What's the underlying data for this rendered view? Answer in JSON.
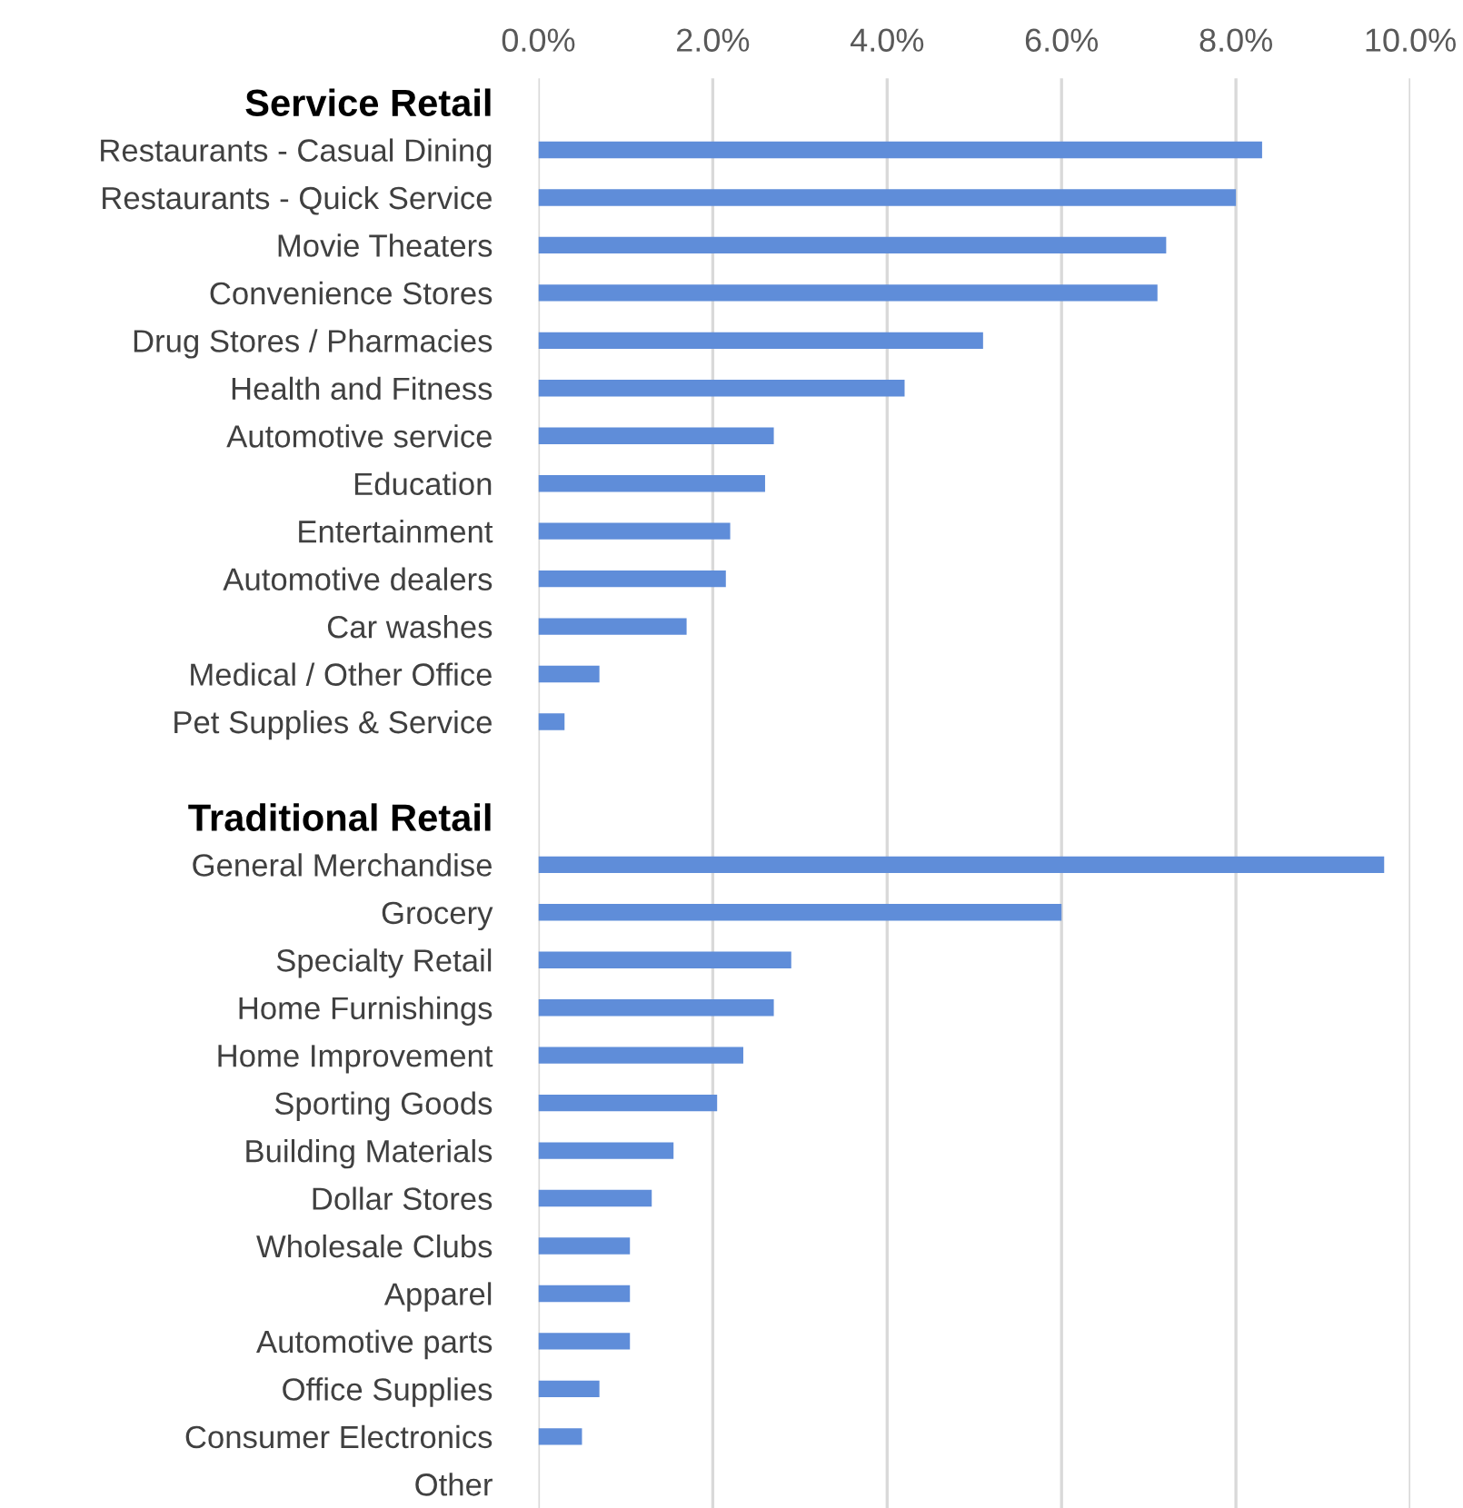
{
  "chart_data": {
    "type": "bar",
    "orientation": "horizontal",
    "categories": [
      "Service Retail",
      "Restaurants - Casual Dining",
      "Restaurants - Quick Service",
      "Movie Theaters",
      "Convenience Stores",
      "Drug Stores / Pharmacies",
      "Health and Fitness",
      "Automotive service",
      "Education",
      "Entertainment",
      "Automotive dealers",
      "Car washes",
      "Medical / Other Office",
      "Pet Supplies & Service",
      null,
      "Traditional Retail",
      "General Merchandise",
      "Grocery",
      "Specialty Retail",
      "Home Furnishings",
      "Home Improvement",
      "Sporting Goods",
      "Building Materials",
      "Dollar Stores",
      "Wholesale Clubs",
      "Apparel",
      "Automotive parts",
      "Office Supplies",
      "Consumer Electronics",
      "Other"
    ],
    "values": [
      null,
      8.3,
      8.0,
      7.2,
      7.1,
      5.1,
      4.2,
      2.7,
      2.6,
      2.2,
      2.15,
      1.7,
      0.7,
      0.3,
      null,
      null,
      9.7,
      6.0,
      2.9,
      2.7,
      2.35,
      2.05,
      1.55,
      1.3,
      1.05,
      1.05,
      1.05,
      0.7,
      0.5,
      0.0
    ],
    "color": "#5f8dd9",
    "xlim": [
      0,
      10
    ],
    "xticks": [
      {
        "value": 0,
        "label": "0.0%"
      },
      {
        "value": 2,
        "label": "2.0%"
      },
      {
        "value": 4,
        "label": "4.0%"
      },
      {
        "value": 6,
        "label": "6.0%"
      },
      {
        "value": 8,
        "label": "8.0%"
      },
      {
        "value": 10,
        "label": "10.0%"
      }
    ],
    "grid": "x",
    "legend": false
  }
}
